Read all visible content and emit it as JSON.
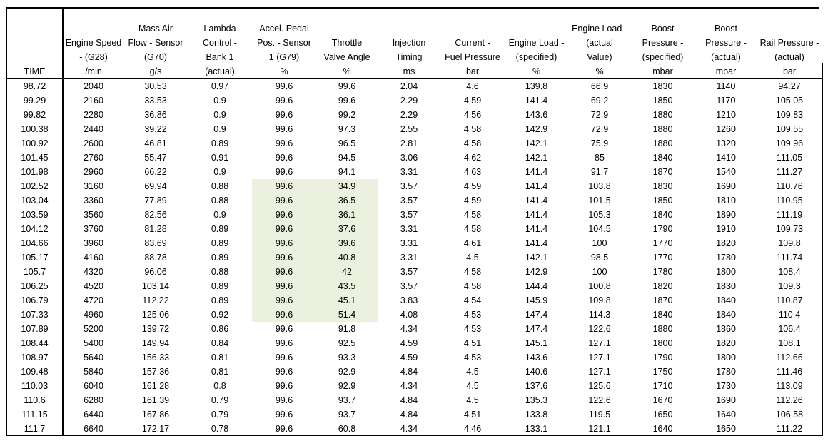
{
  "headers": [
    [
      "TIME"
    ],
    [
      "Engine Speed",
      "- (G28)",
      "/min"
    ],
    [
      "Mass Air",
      "Flow - Sensor",
      "(G70)",
      "g/s"
    ],
    [
      "Lambda",
      "Control -",
      "Bank 1",
      "(actual)"
    ],
    [
      "Accel. Pedal",
      "Pos. - Sensor",
      "1 (G79)",
      "%"
    ],
    [
      "Throttle",
      "Valve Angle",
      "%"
    ],
    [
      "Injection",
      "Timing",
      "ms"
    ],
    [
      "Current -",
      "Fuel Pressure",
      "bar"
    ],
    [
      "Engine Load -",
      "(specified)",
      "%"
    ],
    [
      "Engine Load -",
      "(actual",
      "Value)",
      "%"
    ],
    [
      "Boost",
      "Pressure -",
      "(specified)",
      "mbar"
    ],
    [
      "Boost",
      "Pressure -",
      "(actual)",
      "mbar"
    ],
    [
      "Rail Pressure -",
      "(actual)",
      "bar"
    ]
  ],
  "rows": [
    [
      "98.72",
      "2040",
      "30.53",
      "0.97",
      "99.6",
      "99.6",
      "2.04",
      "4.6",
      "139.8",
      "66.9",
      "1830",
      "1140",
      "94.27"
    ],
    [
      "99.29",
      "2160",
      "33.53",
      "0.9",
      "99.6",
      "99.6",
      "2.29",
      "4.59",
      "141.4",
      "69.2",
      "1850",
      "1170",
      "105.05"
    ],
    [
      "99.82",
      "2280",
      "36.86",
      "0.9",
      "99.6",
      "99.2",
      "2.29",
      "4.56",
      "143.6",
      "72.9",
      "1880",
      "1210",
      "109.83"
    ],
    [
      "100.38",
      "2440",
      "39.22",
      "0.9",
      "99.6",
      "97.3",
      "2.55",
      "4.58",
      "142.9",
      "72.9",
      "1880",
      "1260",
      "109.55"
    ],
    [
      "100.92",
      "2600",
      "46.81",
      "0.89",
      "99.6",
      "96.5",
      "2.81",
      "4.58",
      "142.1",
      "75.9",
      "1880",
      "1320",
      "109.96"
    ],
    [
      "101.45",
      "2760",
      "55.47",
      "0.91",
      "99.6",
      "94.5",
      "3.06",
      "4.62",
      "142.1",
      "85",
      "1840",
      "1410",
      "111.05"
    ],
    [
      "101.98",
      "2960",
      "66.22",
      "0.9",
      "99.6",
      "94.1",
      "3.31",
      "4.63",
      "141.4",
      "91.7",
      "1870",
      "1540",
      "111.27"
    ],
    [
      "102.52",
      "3160",
      "69.94",
      "0.88",
      "99.6",
      "34.9",
      "3.57",
      "4.59",
      "141.4",
      "103.8",
      "1830",
      "1690",
      "110.76"
    ],
    [
      "103.04",
      "3360",
      "77.89",
      "0.88",
      "99.6",
      "36.5",
      "3.57",
      "4.59",
      "141.4",
      "101.5",
      "1850",
      "1810",
      "110.95"
    ],
    [
      "103.59",
      "3560",
      "82.56",
      "0.9",
      "99.6",
      "36.1",
      "3.57",
      "4.58",
      "141.4",
      "105.3",
      "1840",
      "1890",
      "111.19"
    ],
    [
      "104.12",
      "3760",
      "81.28",
      "0.89",
      "99.6",
      "37.6",
      "3.31",
      "4.58",
      "141.4",
      "104.5",
      "1790",
      "1910",
      "109.73"
    ],
    [
      "104.66",
      "3960",
      "83.69",
      "0.89",
      "99.6",
      "39.6",
      "3.31",
      "4.61",
      "141.4",
      "100",
      "1770",
      "1820",
      "109.8"
    ],
    [
      "105.17",
      "4160",
      "88.78",
      "0.89",
      "99.6",
      "40.8",
      "3.31",
      "4.5",
      "142.1",
      "98.5",
      "1770",
      "1780",
      "111.74"
    ],
    [
      "105.7",
      "4320",
      "96.06",
      "0.88",
      "99.6",
      "42",
      "3.57",
      "4.58",
      "142.9",
      "100",
      "1780",
      "1800",
      "108.4"
    ],
    [
      "106.25",
      "4520",
      "103.14",
      "0.89",
      "99.6",
      "43.5",
      "3.57",
      "4.58",
      "144.4",
      "100.8",
      "1820",
      "1830",
      "109.3"
    ],
    [
      "106.79",
      "4720",
      "112.22",
      "0.89",
      "99.6",
      "45.1",
      "3.83",
      "4.54",
      "145.9",
      "109.8",
      "1870",
      "1840",
      "110.87"
    ],
    [
      "107.33",
      "4960",
      "125.06",
      "0.92",
      "99.6",
      "51.4",
      "4.08",
      "4.53",
      "147.4",
      "114.3",
      "1840",
      "1840",
      "110.4"
    ],
    [
      "107.89",
      "5200",
      "139.72",
      "0.86",
      "99.6",
      "91.8",
      "4.34",
      "4.53",
      "147.4",
      "122.6",
      "1880",
      "1860",
      "106.4"
    ],
    [
      "108.44",
      "5400",
      "149.94",
      "0.84",
      "99.6",
      "92.5",
      "4.59",
      "4.51",
      "145.1",
      "127.1",
      "1800",
      "1820",
      "108.1"
    ],
    [
      "108.97",
      "5640",
      "156.33",
      "0.81",
      "99.6",
      "93.3",
      "4.59",
      "4.53",
      "143.6",
      "127.1",
      "1790",
      "1800",
      "112.66"
    ],
    [
      "109.48",
      "5840",
      "157.36",
      "0.81",
      "99.6",
      "92.9",
      "4.84",
      "4.5",
      "140.6",
      "127.1",
      "1750",
      "1780",
      "111.46"
    ],
    [
      "110.03",
      "6040",
      "161.28",
      "0.8",
      "99.6",
      "92.9",
      "4.34",
      "4.5",
      "137.6",
      "125.6",
      "1710",
      "1730",
      "113.09"
    ],
    [
      "110.6",
      "6280",
      "161.39",
      "0.79",
      "99.6",
      "93.7",
      "4.84",
      "4.5",
      "135.3",
      "122.6",
      "1670",
      "1690",
      "112.26"
    ],
    [
      "111.15",
      "6440",
      "167.86",
      "0.79",
      "99.6",
      "93.7",
      "4.84",
      "4.51",
      "133.8",
      "119.5",
      "1650",
      "1640",
      "106.58"
    ],
    [
      "111.7",
      "6640",
      "172.17",
      "0.78",
      "99.6",
      "60.8",
      "4.34",
      "4.46",
      "133.1",
      "121.1",
      "1640",
      "1650",
      "111.22"
    ]
  ],
  "highlight": {
    "color": "#ebf1de",
    "columns": [
      4,
      5
    ],
    "row_start": 7,
    "row_end": 16
  }
}
